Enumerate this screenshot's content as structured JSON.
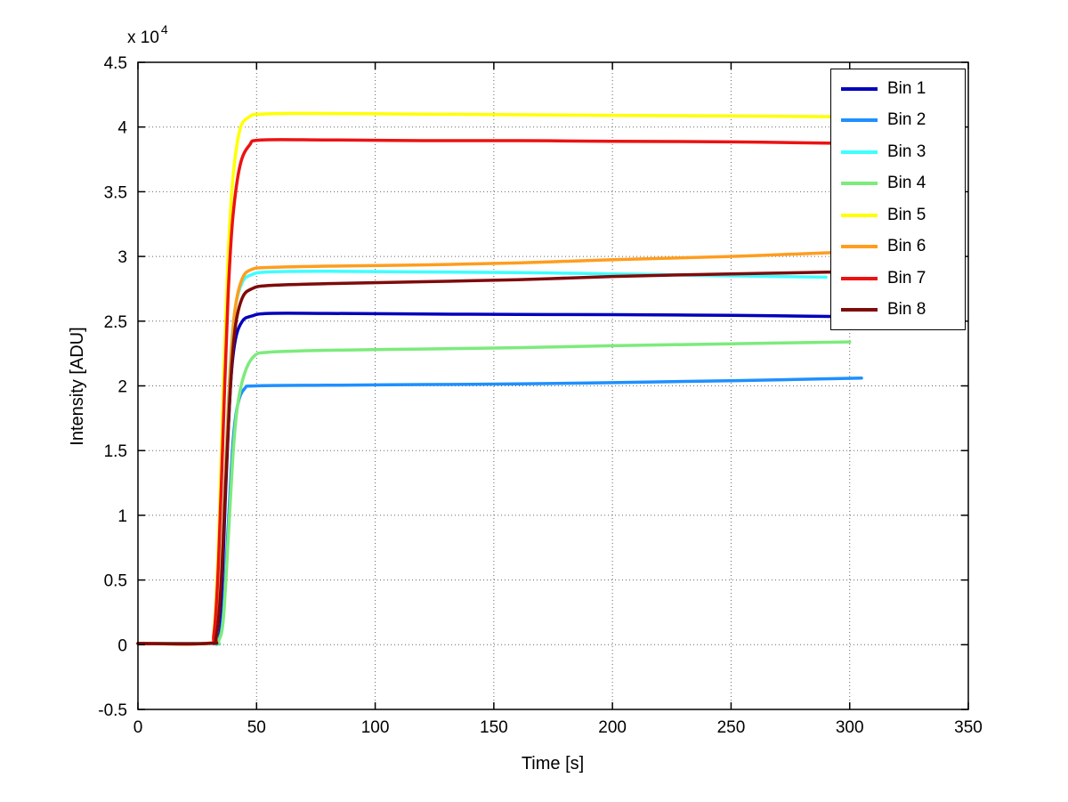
{
  "figure": {
    "background": "#ffffff",
    "axis_color": "#000000",
    "grid_color": "#666666"
  },
  "chart_data": {
    "type": "line",
    "title": "",
    "xlabel": "Time [s]",
    "ylabel": "Intensity [ADU]",
    "y_multiplier_base": "x 10",
    "y_multiplier_exp": "4",
    "xlim": [
      0,
      350
    ],
    "ylim": [
      -5000,
      45000
    ],
    "xticks": [
      0,
      50,
      100,
      150,
      200,
      250,
      300,
      350
    ],
    "xtick_labels": [
      "0",
      "50",
      "100",
      "150",
      "200",
      "250",
      "300",
      "350"
    ],
    "yticks": [
      -5000,
      0,
      5000,
      10000,
      15000,
      20000,
      25000,
      30000,
      35000,
      40000,
      45000
    ],
    "ytick_labels": [
      "-0.5",
      "0",
      "0.5",
      "1",
      "1.5",
      "2",
      "2.5",
      "3",
      "3.5",
      "4",
      "4.5"
    ],
    "grid": true,
    "legend_position": "top-right",
    "series": [
      {
        "name": "Bin 1",
        "color": "#0000BB",
        "points": [
          [
            0,
            100
          ],
          [
            30,
            100
          ],
          [
            33,
            300
          ],
          [
            35,
            3000
          ],
          [
            37,
            12000
          ],
          [
            39,
            20000
          ],
          [
            41,
            23500
          ],
          [
            44,
            25000
          ],
          [
            48,
            25400
          ],
          [
            55,
            25600
          ],
          [
            80,
            25600
          ],
          [
            120,
            25550
          ],
          [
            160,
            25520
          ],
          [
            200,
            25500
          ],
          [
            250,
            25450
          ],
          [
            300,
            25350
          ]
        ]
      },
      {
        "name": "Bin 2",
        "color": "#1E90FF",
        "points": [
          [
            0,
            100
          ],
          [
            31,
            100
          ],
          [
            34,
            300
          ],
          [
            36,
            2500
          ],
          [
            38,
            9000
          ],
          [
            40,
            15500
          ],
          [
            42,
            18500
          ],
          [
            45,
            19800
          ],
          [
            50,
            20000
          ],
          [
            80,
            20050
          ],
          [
            120,
            20100
          ],
          [
            160,
            20150
          ],
          [
            200,
            20250
          ],
          [
            250,
            20400
          ],
          [
            305,
            20600
          ]
        ]
      },
      {
        "name": "Bin 3",
        "color": "#3DFFFF",
        "points": [
          [
            0,
            100
          ],
          [
            30,
            100
          ],
          [
            33,
            500
          ],
          [
            35,
            5000
          ],
          [
            37,
            14000
          ],
          [
            39,
            22000
          ],
          [
            41,
            26000
          ],
          [
            44,
            28000
          ],
          [
            48,
            28600
          ],
          [
            55,
            28800
          ],
          [
            80,
            28850
          ],
          [
            120,
            28800
          ],
          [
            160,
            28750
          ],
          [
            200,
            28650
          ],
          [
            250,
            28500
          ],
          [
            290,
            28400
          ]
        ]
      },
      {
        "name": "Bin 4",
        "color": "#7CEB7C",
        "points": [
          [
            0,
            100
          ],
          [
            31,
            100
          ],
          [
            34,
            300
          ],
          [
            36,
            2000
          ],
          [
            38,
            8000
          ],
          [
            40,
            14500
          ],
          [
            42,
            18500
          ],
          [
            45,
            21000
          ],
          [
            49,
            22300
          ],
          [
            55,
            22600
          ],
          [
            80,
            22750
          ],
          [
            120,
            22850
          ],
          [
            160,
            22950
          ],
          [
            200,
            23100
          ],
          [
            250,
            23250
          ],
          [
            300,
            23400
          ]
        ]
      },
      {
        "name": "Bin 5",
        "color": "#FFFF00",
        "points": [
          [
            0,
            100
          ],
          [
            29,
            100
          ],
          [
            32,
            1000
          ],
          [
            34,
            8000
          ],
          [
            36,
            20000
          ],
          [
            38,
            30000
          ],
          [
            40,
            36000
          ],
          [
            43,
            39800
          ],
          [
            47,
            40800
          ],
          [
            52,
            41000
          ],
          [
            70,
            41050
          ],
          [
            120,
            41000
          ],
          [
            160,
            40950
          ],
          [
            200,
            40900
          ],
          [
            250,
            40850
          ],
          [
            295,
            40800
          ]
        ]
      },
      {
        "name": "Bin 6",
        "color": "#FF9D1E",
        "points": [
          [
            0,
            100
          ],
          [
            30,
            100
          ],
          [
            33,
            700
          ],
          [
            35,
            5000
          ],
          [
            37,
            13500
          ],
          [
            39,
            21500
          ],
          [
            41,
            26000
          ],
          [
            44,
            28300
          ],
          [
            48,
            29000
          ],
          [
            55,
            29150
          ],
          [
            80,
            29250
          ],
          [
            120,
            29350
          ],
          [
            160,
            29500
          ],
          [
            200,
            29750
          ],
          [
            250,
            30000
          ],
          [
            293,
            30300
          ]
        ]
      },
      {
        "name": "Bin 7",
        "color": "#EC1212",
        "points": [
          [
            0,
            100
          ],
          [
            29,
            100
          ],
          [
            32,
            800
          ],
          [
            34,
            6500
          ],
          [
            36,
            17000
          ],
          [
            38,
            27000
          ],
          [
            40,
            33000
          ],
          [
            43,
            37000
          ],
          [
            47,
            38600
          ],
          [
            52,
            39000
          ],
          [
            80,
            39000
          ],
          [
            120,
            38950
          ],
          [
            160,
            38950
          ],
          [
            200,
            38900
          ],
          [
            250,
            38850
          ],
          [
            293,
            38750
          ]
        ]
      },
      {
        "name": "Bin 8",
        "color": "#7E0B0B",
        "points": [
          [
            0,
            100
          ],
          [
            30,
            100
          ],
          [
            33,
            600
          ],
          [
            35,
            4500
          ],
          [
            37,
            12500
          ],
          [
            39,
            20000
          ],
          [
            41,
            24500
          ],
          [
            44,
            26800
          ],
          [
            48,
            27500
          ],
          [
            55,
            27750
          ],
          [
            80,
            27900
          ],
          [
            120,
            28050
          ],
          [
            160,
            28200
          ],
          [
            200,
            28450
          ],
          [
            250,
            28650
          ],
          [
            295,
            28800
          ]
        ]
      }
    ]
  }
}
